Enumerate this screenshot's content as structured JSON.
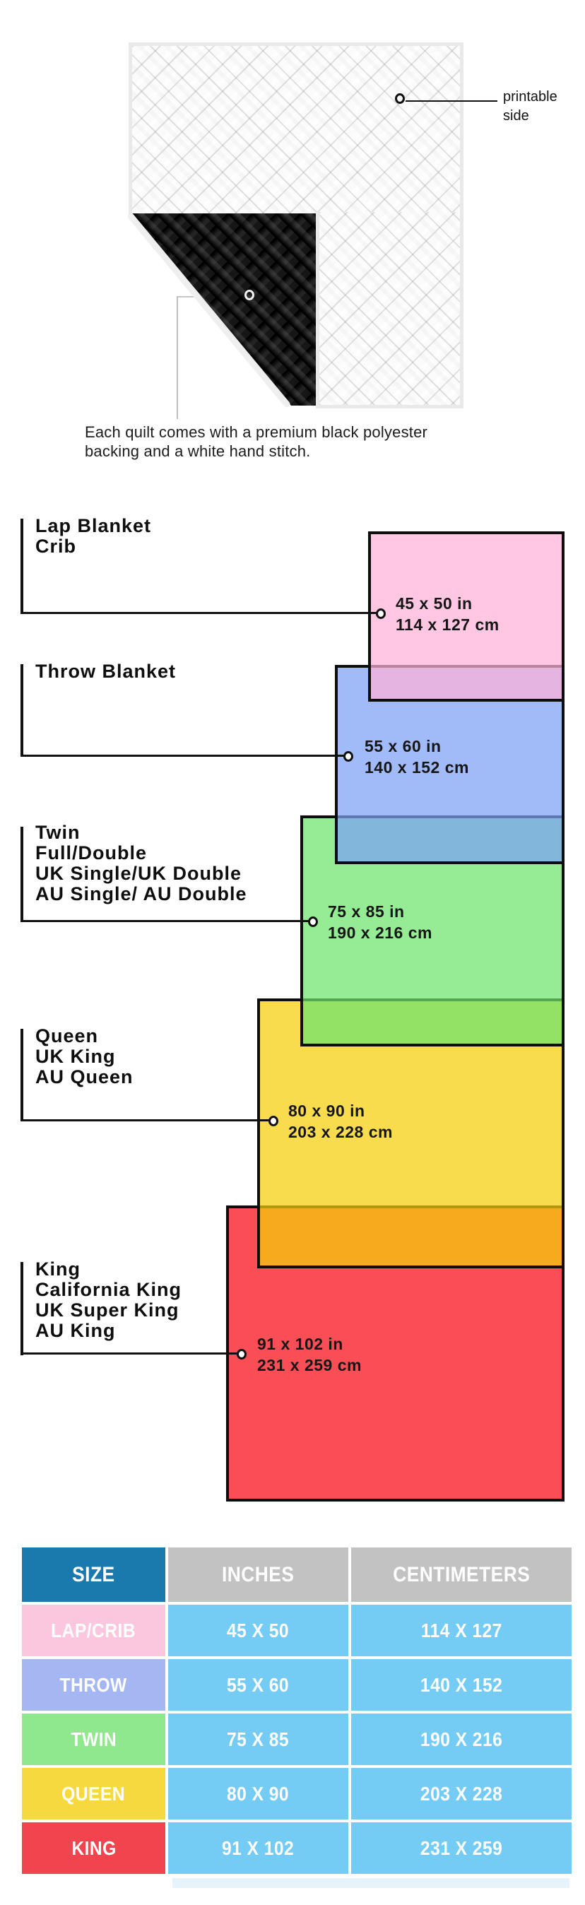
{
  "quilt_section": {
    "printable_callout": "printable side",
    "caption_line1": "Each quilt comes with a premium black polyester",
    "caption_line2": "backing and a white hand stitch.",
    "front_color": "#fbfbfb",
    "backing_color": "#161616"
  },
  "diagram": {
    "sizes": [
      {
        "labels": [
          "Lap Blanket",
          "Crib"
        ],
        "inches": "45 x 50 in",
        "centimeters": "114 x 127 cm",
        "color": "#ffc9e3"
      },
      {
        "labels": [
          "Throw Blanket"
        ],
        "inches": "55 x 60 in",
        "centimeters": "140 x 152 cm",
        "color": "#a3bdf8"
      },
      {
        "labels": [
          "Twin",
          "Full/Double",
          "UK Single/UK Double",
          "AU Single/ AU Double"
        ],
        "inches": "75 x 85 in",
        "centimeters": "190 x 216 cm",
        "color": "#98ed98"
      },
      {
        "labels": [
          "Queen",
          "UK King",
          "AU Queen"
        ],
        "inches": "80 x 90 in",
        "centimeters": "203 x 228 cm",
        "color": "#f8dd4a"
      },
      {
        "labels": [
          "King",
          "California King",
          "UK Super King",
          "AU King"
        ],
        "inches": "91 x 102 in",
        "centimeters": "231 x 259 cm",
        "color": "#f9474f"
      }
    ]
  },
  "table": {
    "headers": [
      "SIZE",
      "INCHES",
      "CENTIMETERS"
    ],
    "rows": [
      {
        "size": "LAP/CRIB",
        "inches": "45 X 50",
        "centimeters": "114 X 127",
        "color": "#fbc7de"
      },
      {
        "size": "THROW",
        "inches": "55 X 60",
        "centimeters": "140 X 152",
        "color": "#a5b7f3"
      },
      {
        "size": "TWIN",
        "inches": "75 X 85",
        "centimeters": "190 X 216",
        "color": "#8fe78e"
      },
      {
        "size": "QUEEN",
        "inches": "80 X 90",
        "centimeters": "203 X 228",
        "color": "#f5d93f"
      },
      {
        "size": "KING",
        "inches": "91 X 102",
        "centimeters": "231 X 259",
        "color": "#f0454e"
      }
    ],
    "header_size_bg": "#1a7aae",
    "header_other_bg": "#c2c2c2",
    "data_cell_bg": "#74cbf3"
  }
}
